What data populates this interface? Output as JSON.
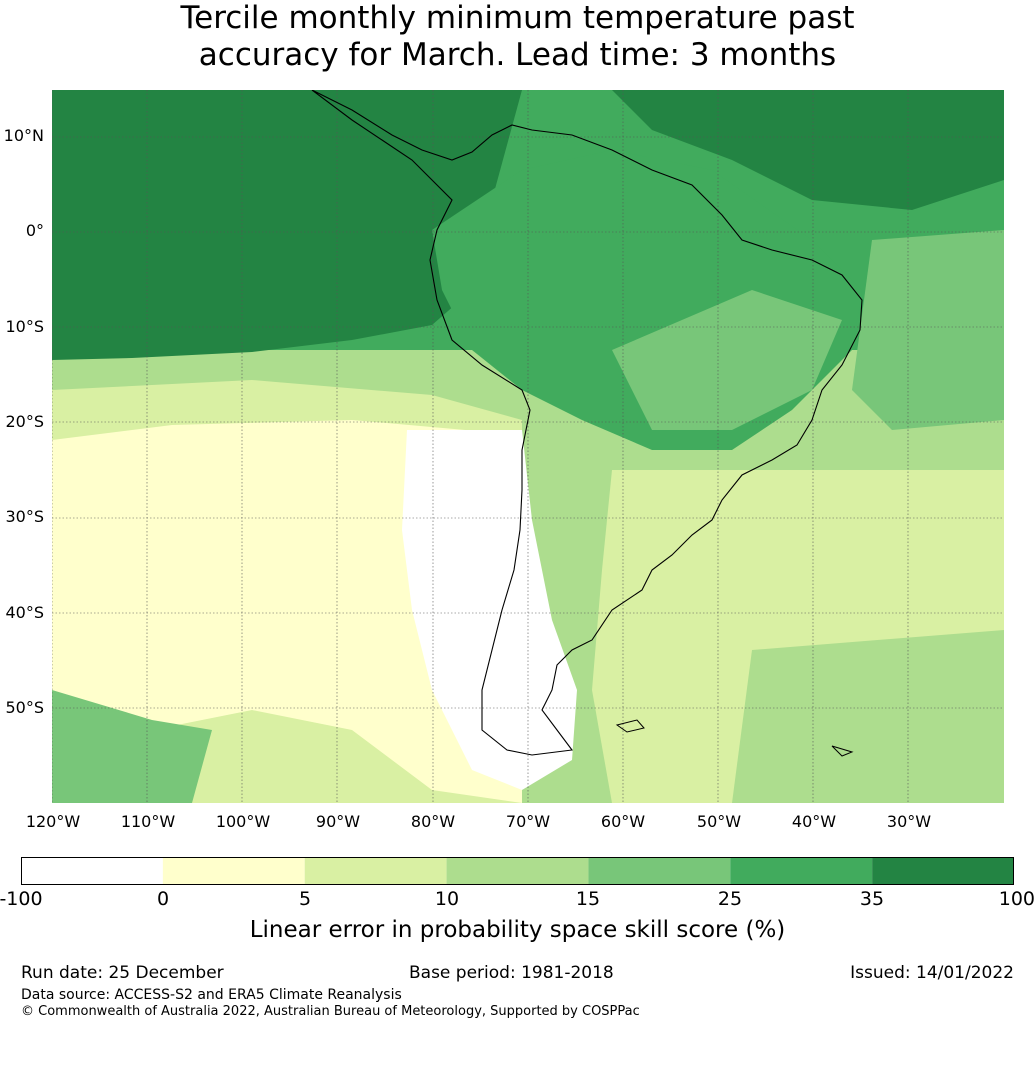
{
  "title_line1": "Tercile monthly minimum temperature past",
  "title_line2": "accuracy for March. Lead time: 3 months",
  "lat_labels": [
    "10°N",
    "0°",
    "10°S",
    "20°S",
    "30°S",
    "40°S",
    "50°S"
  ],
  "lon_labels": [
    "120°W",
    "110°W",
    "100°W",
    "90°W",
    "80°W",
    "70°W",
    "60°W",
    "50°W",
    "40°W",
    "30°W"
  ],
  "colorbar": {
    "colors": [
      "#ffffff",
      "#ffffcc",
      "#d9f0a3",
      "#addd8e",
      "#78c679",
      "#41ab5d",
      "#238443"
    ],
    "ticks": [
      "-100",
      "0",
      "5",
      "10",
      "15",
      "25",
      "35",
      "100"
    ],
    "label": "Linear error in probability space skill score (%)"
  },
  "footer": {
    "run_date": "Run date: 25 December",
    "base_period": "Base period: 1981-2018",
    "issued": "Issued: 14/01/2022",
    "data_source": "Data source: ACCESS-S2 and ERA5 Climate Reanalysis",
    "copyright": "© Commonwealth of Australia 2022, Australian Bureau of Meteorology, Supported by COSPPac"
  }
}
